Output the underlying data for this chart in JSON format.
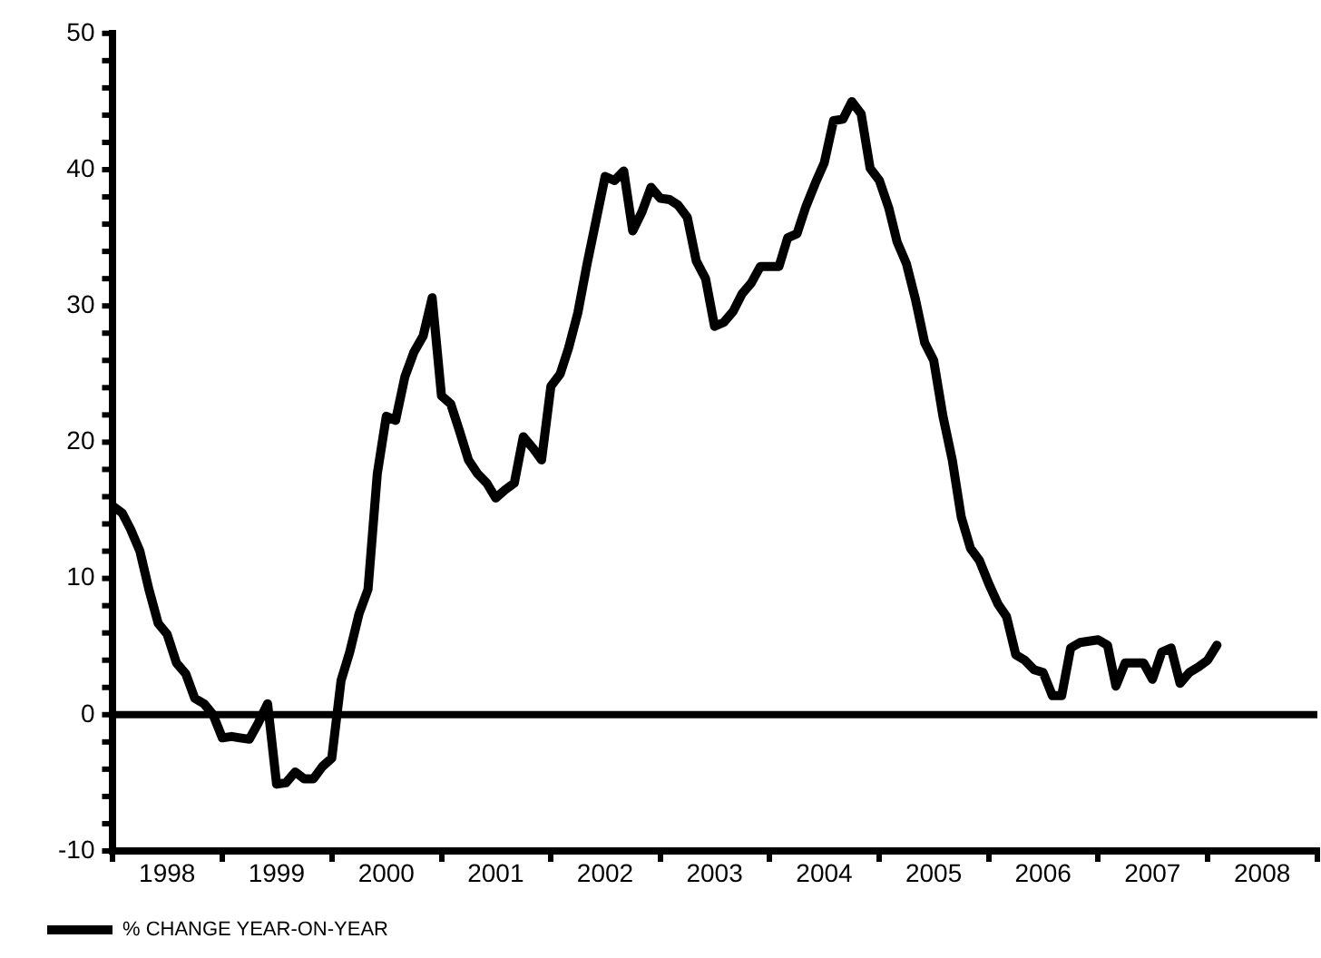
{
  "chart_data": {
    "type": "line",
    "legend": "bottom left",
    "marker": "none",
    "line_style": "solid",
    "xlim": [
      "1998-01",
      "2009-01"
    ],
    "xticks": [
      {
        "value": "1998-01",
        "label": null
      },
      {
        "value": "1998-07",
        "label": "1998"
      },
      {
        "value": "1999-01",
        "label": null
      },
      {
        "value": "1999-07",
        "label": "1999"
      },
      {
        "value": "2000-01",
        "label": null
      },
      {
        "value": "2000-07",
        "label": "2000"
      },
      {
        "value": "2001-01",
        "label": null
      },
      {
        "value": "2001-07",
        "label": "2001"
      },
      {
        "value": "2002-01",
        "label": null
      },
      {
        "value": "2002-07",
        "label": "2002"
      },
      {
        "value": "2003-01",
        "label": null
      },
      {
        "value": "2003-07",
        "label": "2003"
      },
      {
        "value": "2004-01",
        "label": null
      },
      {
        "value": "2004-07",
        "label": "2004"
      },
      {
        "value": "2005-01",
        "label": null
      },
      {
        "value": "2005-07",
        "label": "2005"
      },
      {
        "value": "2006-01",
        "label": null
      },
      {
        "value": "2006-07",
        "label": "2006"
      },
      {
        "value": "2007-01",
        "label": null
      },
      {
        "value": "2007-07",
        "label": "2007"
      },
      {
        "value": "2008-01",
        "label": null
      },
      {
        "value": "2008-07",
        "label": "2008"
      },
      {
        "value": "2009-01",
        "label": null
      }
    ],
    "ylim": [
      -10,
      50
    ],
    "yticks": [
      -10,
      {
        "value": -8,
        "label": null
      },
      {
        "value": -6,
        "label": null
      },
      {
        "value": -4,
        "label": null
      },
      {
        "value": -2,
        "label": null
      },
      0,
      {
        "value": 2,
        "label": null
      },
      {
        "value": 4,
        "label": null
      },
      {
        "value": 6,
        "label": null
      },
      {
        "value": 8,
        "label": null
      },
      10,
      {
        "value": 12,
        "label": null
      },
      {
        "value": 14,
        "label": null
      },
      {
        "value": 16,
        "label": null
      },
      {
        "value": 18,
        "label": null
      },
      20,
      {
        "value": 22,
        "label": null
      },
      {
        "value": 24,
        "label": null
      },
      {
        "value": 26,
        "label": null
      },
      {
        "value": 28,
        "label": null
      },
      30,
      {
        "value": 32,
        "label": null
      },
      {
        "value": 34,
        "label": null
      },
      {
        "value": 36,
        "label": null
      },
      {
        "value": 38,
        "label": null
      },
      40,
      {
        "value": 42,
        "label": null
      },
      {
        "value": 44,
        "label": null
      },
      {
        "value": 46,
        "label": null
      },
      {
        "value": 48,
        "label": null
      },
      50
    ],
    "ref_lines": [
      {
        "axis": "y",
        "value": 0,
        "color": "#000000"
      }
    ],
    "x": [
      "1998-01",
      "1998-02",
      "1998-03",
      "1998-04",
      "1998-05",
      "1998-06",
      "1998-07",
      "1998-08",
      "1998-09",
      "1998-10",
      "1998-11",
      "1998-12",
      "1999-01",
      "1999-02",
      "1999-03",
      "1999-04",
      "1999-05",
      "1999-06",
      "1999-07",
      "1999-08",
      "1999-09",
      "1999-10",
      "1999-11",
      "1999-12",
      "2000-01",
      "2000-02",
      "2000-03",
      "2000-04",
      "2000-05",
      "2000-06",
      "2000-07",
      "2000-08",
      "2000-09",
      "2000-10",
      "2000-11",
      "2000-12",
      "2001-01",
      "2001-02",
      "2001-03",
      "2001-04",
      "2001-05",
      "2001-06",
      "2001-07",
      "2001-08",
      "2001-09",
      "2001-10",
      "2001-11",
      "2001-12",
      "2002-01",
      "2002-02",
      "2002-03",
      "2002-04",
      "2002-05",
      "2002-06",
      "2002-07",
      "2002-08",
      "2002-09",
      "2002-10",
      "2002-11",
      "2002-12",
      "2003-01",
      "2003-02",
      "2003-03",
      "2003-04",
      "2003-05",
      "2003-06",
      "2003-07",
      "2003-08",
      "2003-09",
      "2003-10",
      "2003-11",
      "2003-12",
      "2004-01",
      "2004-02",
      "2004-03",
      "2004-04",
      "2004-05",
      "2004-06",
      "2004-07",
      "2004-08",
      "2004-09",
      "2004-10",
      "2004-11",
      "2004-12",
      "2005-01",
      "2005-02",
      "2005-03",
      "2005-04",
      "2005-05",
      "2005-06",
      "2005-07",
      "2005-08",
      "2005-09",
      "2005-10",
      "2005-11",
      "2005-12",
      "2006-01",
      "2006-02",
      "2006-03",
      "2006-04",
      "2006-05",
      "2006-06",
      "2006-07",
      "2006-08",
      "2006-09",
      "2006-10",
      "2006-11",
      "2006-12",
      "2007-01",
      "2007-02",
      "2007-03",
      "2007-04",
      "2007-05",
      "2007-06",
      "2007-07",
      "2007-08",
      "2007-09",
      "2007-10",
      "2007-11",
      "2007-12",
      "2008-01",
      "2008-02"
    ],
    "series": [
      {
        "name": "% CHANGE YEAR-ON-YEAR",
        "color": "#000000",
        "values": [
          15.3,
          14.8,
          13.6,
          12,
          9.2,
          6.7,
          5.9,
          3.8,
          3,
          1.2,
          0.8,
          0,
          -1.7,
          -1.6,
          -1.7,
          -1.8,
          -0.6,
          0.8,
          -5.1,
          -5,
          -4.2,
          -4.7,
          -4.7,
          -3.8,
          -3.2,
          2.5,
          4.6,
          7.4,
          9.2,
          17.7,
          21.9,
          21.6,
          24.8,
          26.6,
          27.8,
          30.6,
          23.4,
          22.8,
          20.9,
          18.7,
          17.7,
          17,
          15.9,
          16.5,
          17,
          20.4,
          19.6,
          18.7,
          24.1,
          25,
          26.9,
          29.5,
          33,
          36.3,
          39.5,
          39.2,
          39.9,
          35.5,
          36.9,
          38.7,
          37.9,
          37.8,
          37.4,
          36.5,
          33.3,
          32,
          28.5,
          28.8,
          29.6,
          30.9,
          31.7,
          32.9,
          32.9,
          32.9,
          35,
          35.3,
          37.3,
          39,
          40.5,
          43.6,
          43.7,
          45,
          44.1,
          40.1,
          39.2,
          37.2,
          34.7,
          33.1,
          30.5,
          27.3,
          26,
          21.9,
          18.7,
          14.5,
          12.2,
          11.3,
          9.6,
          8.1,
          7.2,
          4.4,
          4,
          3.3,
          3.1,
          1.4,
          1.4,
          4.9,
          5.3,
          5.4,
          5.5,
          5.1,
          2.1,
          3.8,
          3.8,
          3.8,
          2.6,
          4.6,
          4.9,
          2.3,
          3.1,
          3.5,
          4,
          5.1
        ]
      }
    ]
  }
}
